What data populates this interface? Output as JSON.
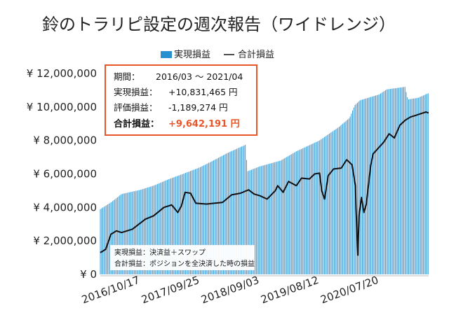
{
  "chart_data": {
    "type": "bar",
    "title": "鈴のトラリピ設定の週次報告（ワイドレンジ）",
    "legend": [
      {
        "name": "実現損益",
        "color": "#2a8fd0",
        "kind": "bar"
      },
      {
        "name": "合計損益",
        "color": "#111111",
        "kind": "line"
      }
    ],
    "y_tick_labels": [
      "¥ 0",
      "¥ 2,000,000",
      "¥ 4,000,000",
      "¥ 6,000,000",
      "¥ 8,000,000",
      "¥ 10,000,000",
      "¥ 12,000,000"
    ],
    "ylim": [
      0,
      12000000
    ],
    "x_tick_labels": [
      "2016/10/17",
      "2017/09/25",
      "2018/09/03",
      "2019/08/12",
      "2020/07/20"
    ],
    "x_tick_dates": [
      "2016-10-17",
      "2017-09-25",
      "2018-09-03",
      "2019-08-12",
      "2020-07-20"
    ],
    "grid": false,
    "legend_position": "top-center",
    "series": [
      {
        "name": "実現損益",
        "type": "bar",
        "points": [
          [
            "2016-03-01",
            3900000
          ],
          [
            "2016-05-01",
            4300000
          ],
          [
            "2016-07-01",
            4800000
          ],
          [
            "2016-10-17",
            5050000
          ],
          [
            "2017-01-01",
            5300000
          ],
          [
            "2017-04-01",
            5700000
          ],
          [
            "2017-07-01",
            6050000
          ],
          [
            "2017-09-25",
            6400000
          ],
          [
            "2017-12-01",
            6750000
          ],
          [
            "2018-03-01",
            7250000
          ],
          [
            "2018-06-15",
            7750000
          ],
          [
            "2018-06-22",
            6150000
          ],
          [
            "2018-09-03",
            6450000
          ],
          [
            "2019-01-01",
            6800000
          ],
          [
            "2019-04-01",
            7350000
          ],
          [
            "2019-08-12",
            8000000
          ],
          [
            "2019-12-01",
            8800000
          ],
          [
            "2020-02-01",
            9350000
          ],
          [
            "2020-03-01",
            10100000
          ],
          [
            "2020-04-01",
            10400000
          ],
          [
            "2020-07-20",
            10750000
          ],
          [
            "2020-09-01",
            11050000
          ],
          [
            "2020-12-15",
            11200000
          ],
          [
            "2021-01-01",
            10450000
          ],
          [
            "2021-03-01",
            10550000
          ],
          [
            "2021-04-30",
            10831465
          ]
        ]
      },
      {
        "name": "合計損益",
        "type": "line",
        "points": [
          [
            "2016-03-01",
            1300000
          ],
          [
            "2016-04-01",
            1500000
          ],
          [
            "2016-05-01",
            2400000
          ],
          [
            "2016-06-01",
            2600000
          ],
          [
            "2016-07-01",
            2500000
          ],
          [
            "2016-09-01",
            2700000
          ],
          [
            "2016-11-15",
            3300000
          ],
          [
            "2017-01-01",
            3500000
          ],
          [
            "2017-03-01",
            4000000
          ],
          [
            "2017-04-15",
            4150000
          ],
          [
            "2017-05-20",
            3700000
          ],
          [
            "2017-06-10",
            4100000
          ],
          [
            "2017-07-01",
            4900000
          ],
          [
            "2017-08-01",
            4850000
          ],
          [
            "2017-09-01",
            4250000
          ],
          [
            "2017-11-01",
            4200000
          ],
          [
            "2018-02-01",
            4300000
          ],
          [
            "2018-03-25",
            4750000
          ],
          [
            "2018-05-15",
            4850000
          ],
          [
            "2018-07-01",
            5050000
          ],
          [
            "2018-08-01",
            4800000
          ],
          [
            "2018-09-03",
            4700000
          ],
          [
            "2018-10-15",
            4500000
          ],
          [
            "2018-12-01",
            5000000
          ],
          [
            "2018-12-15",
            5300000
          ],
          [
            "2019-01-15",
            4900000
          ],
          [
            "2019-02-15",
            5550000
          ],
          [
            "2019-04-01",
            5300000
          ],
          [
            "2019-05-01",
            5750000
          ],
          [
            "2019-06-15",
            5700000
          ],
          [
            "2019-07-15",
            6000000
          ],
          [
            "2019-08-12",
            6050000
          ],
          [
            "2019-08-25",
            5000000
          ],
          [
            "2019-09-10",
            4500000
          ],
          [
            "2019-10-01",
            5900000
          ],
          [
            "2019-11-01",
            6300000
          ],
          [
            "2019-12-15",
            6350000
          ],
          [
            "2020-01-15",
            6850000
          ],
          [
            "2020-02-15",
            6550000
          ],
          [
            "2020-03-05",
            5300000
          ],
          [
            "2020-03-12",
            3000000
          ],
          [
            "2020-03-19",
            1150000
          ],
          [
            "2020-03-26",
            3500000
          ],
          [
            "2020-04-09",
            4600000
          ],
          [
            "2020-04-23",
            3700000
          ],
          [
            "2020-05-07",
            4200000
          ],
          [
            "2020-06-01",
            6500000
          ],
          [
            "2020-06-15",
            7200000
          ],
          [
            "2020-07-20",
            7600000
          ],
          [
            "2020-08-15",
            7900000
          ],
          [
            "2020-09-15",
            8400000
          ],
          [
            "2020-10-15",
            8150000
          ],
          [
            "2020-11-15",
            8900000
          ],
          [
            "2020-12-15",
            9200000
          ],
          [
            "2021-01-15",
            9400000
          ],
          [
            "2021-02-15",
            9500000
          ],
          [
            "2021-03-15",
            9600000
          ],
          [
            "2021-04-15",
            9700000
          ],
          [
            "2021-04-30",
            9642191
          ]
        ]
      }
    ]
  },
  "info_box": {
    "period_label": "期間：",
    "period_value": "2016/03 ～ 2021/04",
    "realized_label": "実現損益：",
    "realized_value": "+10,831,465 円",
    "unrealized_label": "評価損益：",
    "unrealized_value": "-1,189,274 円",
    "total_label": "合計損益：",
    "total_value": "+9,642,191 円",
    "border_color": "#e8562a"
  },
  "notes": {
    "line1": "実現損益：決済益＋スワップ",
    "line2": "合計損益：ポジションを全決済した時の損益"
  }
}
